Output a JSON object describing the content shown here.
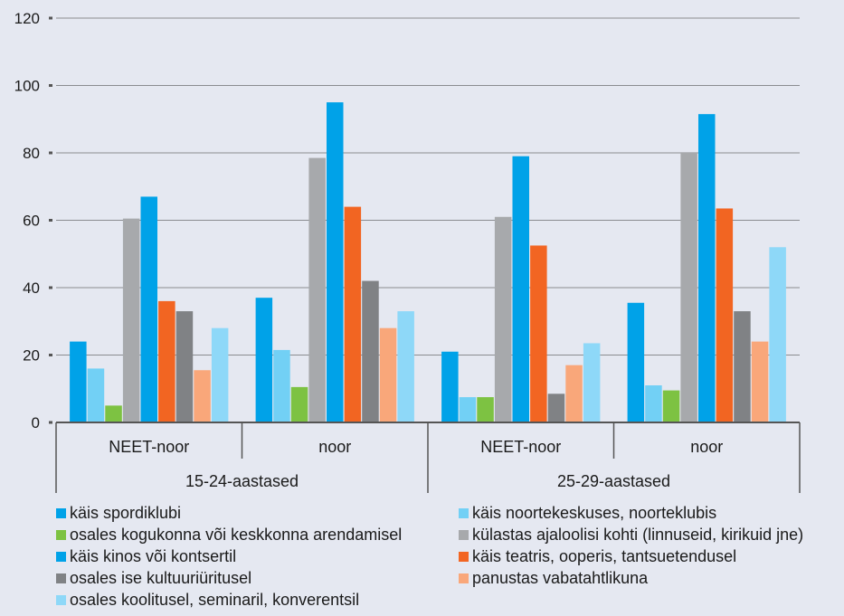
{
  "chart_data": {
    "type": "bar",
    "ylim": [
      0,
      120
    ],
    "yticks": [
      0,
      20,
      40,
      60,
      80,
      100,
      120
    ],
    "grid": true,
    "legend_position": "bottom",
    "groups": [
      {
        "label": "15-24-aastased",
        "subgroups": [
          "NEET-noor",
          "noor"
        ]
      },
      {
        "label": "25-29-aastased",
        "subgroups": [
          "NEET-noor",
          "noor"
        ]
      }
    ],
    "categories": [
      "NEET-noor",
      "noor",
      "NEET-noor",
      "noor"
    ],
    "series": [
      {
        "name": "käis spordiklubi",
        "color": "#00a2e8",
        "values": [
          24,
          37,
          21,
          35.5
        ]
      },
      {
        "name": "käis noortekeskuses, noorteklubis",
        "color": "#72d0f5",
        "values": [
          16,
          21.5,
          7.5,
          11
        ]
      },
      {
        "name": "osales  kogukonna või keskkonna arendamisel",
        "color": "#7dc242",
        "values": [
          5,
          10.5,
          7.5,
          9.5
        ]
      },
      {
        "name": "külastas ajaloolisi kohti (linnuseid, kirikuid jne)",
        "color": "#a7a9ac",
        "values": [
          60.5,
          78.5,
          61,
          80
        ]
      },
      {
        "name": "käis kinos või  kontsertil",
        "color": "#00a2e8",
        "values": [
          67,
          95,
          79,
          91.5
        ]
      },
      {
        "name": "käis teatris, ooperis, tantsuetendusel",
        "color": "#f26522",
        "values": [
          36,
          64,
          52.5,
          63.5
        ]
      },
      {
        "name": "osales ise kultuuriüritusel",
        "color": "#808285",
        "values": [
          33,
          42,
          8.5,
          33
        ]
      },
      {
        "name": "panustas vabatahtlikuna",
        "color": "#f9a77a",
        "values": [
          15.5,
          28,
          17,
          24
        ]
      },
      {
        "name": "osales koolitusel, seminaril, konverentsil",
        "color": "#8ed8f8",
        "values": [
          28,
          33,
          23.5,
          52
        ]
      }
    ]
  }
}
